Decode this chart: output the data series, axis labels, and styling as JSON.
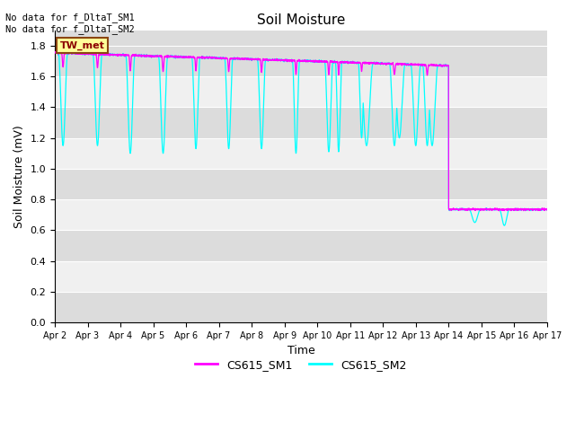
{
  "title": "Soil Moisture",
  "xlabel": "Time",
  "ylabel": "Soil Moisture (mV)",
  "ylim": [
    0.0,
    1.9
  ],
  "yticks": [
    0.0,
    0.2,
    0.4,
    0.6,
    0.8,
    1.0,
    1.2,
    1.4,
    1.6,
    1.8
  ],
  "x_labels": [
    "Apr 2",
    "Apr 3",
    "Apr 4",
    "Apr 5",
    "Apr 6",
    "Apr 7",
    "Apr 8",
    "Apr 9",
    "Apr 10",
    "Apr 11",
    "Apr 12",
    "Apr 13",
    "Apr 14",
    "Apr 15",
    "Apr 16",
    "Apr 17"
  ],
  "color_sm1": "#FF00FF",
  "color_sm2": "#00FFFF",
  "annotation_text": "No data for f_DltaT_SM1\nNo data for f_DltaT_SM2",
  "legend_label1": "CS615_SM1",
  "legend_label2": "CS615_SM2",
  "tw_met_label": "TW_met",
  "tw_met_bg": "#FFFF99",
  "tw_met_border": "#8B4513",
  "bg_dark": "#DCDCDC",
  "bg_light": "#F0F0F0",
  "grid_color": "#FFFFFF"
}
